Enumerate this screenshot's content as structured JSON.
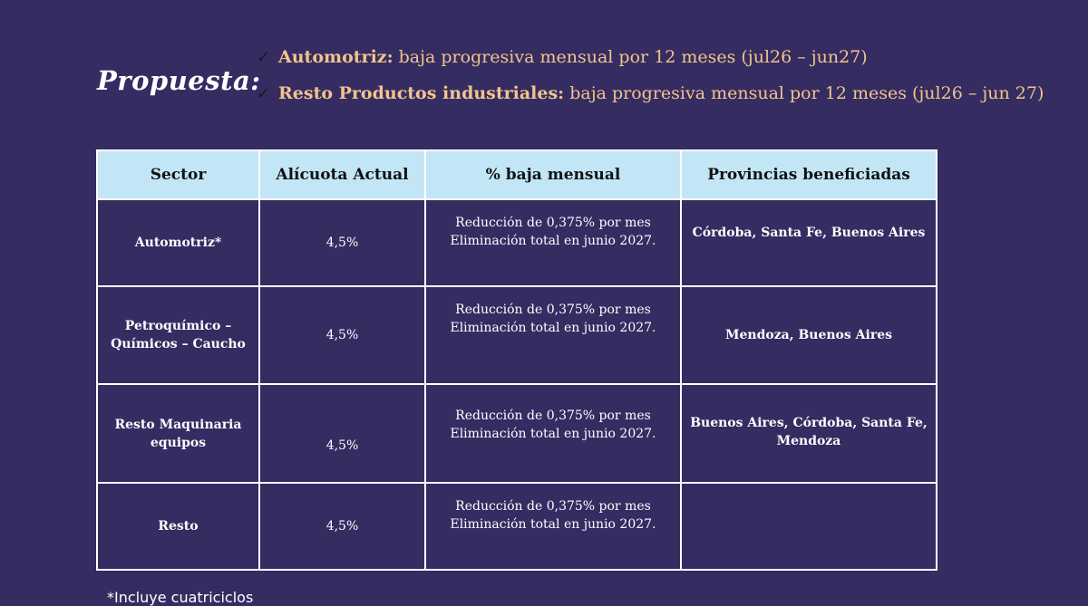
{
  "title": "Propuesta:",
  "bullets": [
    {
      "check": "✓",
      "strong": "Automotriz:",
      "rest": " baja progresiva mensual por 12 meses (jul26 – jun27)"
    },
    {
      "check": "✓",
      "strong": "Resto Productos industriales:",
      "rest": " baja progresiva mensual por 12 meses (jul26 – jun 27)"
    }
  ],
  "table": {
    "headers": [
      "Sector",
      "Alícuota Actual",
      "% baja mensual",
      "Provincias beneficiadas"
    ],
    "rows": [
      {
        "sector": "Automotriz*",
        "alicuota": "4,5%",
        "baja_line1": "Reducción de 0,375% por mes",
        "baja_line2": "Eliminación total en junio 2027.",
        "provincias": "Córdoba, Santa Fe, Buenos Aires"
      },
      {
        "sector": "Petroquímico – Químicos – Caucho",
        "alicuota": "4,5%",
        "baja_line1": "Reducción de 0,375% por mes",
        "baja_line2": "Eliminación total en junio 2027.",
        "provincias": "Mendoza, Buenos Aires"
      },
      {
        "sector": "Resto Maquinaria equipos",
        "alicuota": "4,5%",
        "baja_line1": "Reducción de 0,375% por mes",
        "baja_line2": "Eliminación total en junio 2027.",
        "provincias": "Buenos Aires, Córdoba, Santa Fe, Mendoza"
      },
      {
        "sector": "Resto",
        "alicuota": "4,5%",
        "baja_line1": "Reducción de 0,375% por mes",
        "baja_line2": "Eliminación total en junio 2027.",
        "provincias": ""
      }
    ]
  },
  "footnote": "*Incluye cuatriciclos",
  "colors": {
    "background": "#352c62",
    "header_bg": "#c2e6f5",
    "accent_text": "#f2c48a",
    "border": "#ffffff"
  }
}
